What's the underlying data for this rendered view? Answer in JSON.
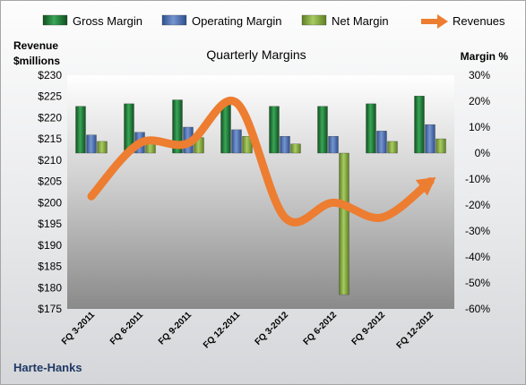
{
  "chart_data": {
    "type": "bar",
    "title": "Quarterly Margins",
    "categories": [
      "FQ 3-2011",
      "FQ 6-2011",
      "FQ 9-2011",
      "FQ 12-2011",
      "FQ 3-2012",
      "FQ 6-2012",
      "FQ 9-2012",
      "FQ 12-2012"
    ],
    "series": [
      {
        "name": "Gross Margin",
        "axis": "right",
        "kind": "bar",
        "color": "#1e7b34",
        "values": [
          18.0,
          19.0,
          20.5,
          19.0,
          18.0,
          18.0,
          19.0,
          22.0
        ]
      },
      {
        "name": "Operating Margin",
        "axis": "right",
        "kind": "bar",
        "color": "#4a72b8",
        "values": [
          7.0,
          8.0,
          10.0,
          9.0,
          6.5,
          6.5,
          8.5,
          11.0
        ]
      },
      {
        "name": "Net Margin",
        "axis": "right",
        "kind": "bar",
        "color": "#8db33f",
        "values": [
          4.5,
          5.0,
          6.0,
          6.5,
          3.5,
          -54.5,
          4.5,
          5.5
        ]
      },
      {
        "name": "Revenues",
        "axis": "left",
        "kind": "line-arrow",
        "color": "#ed7d31",
        "values": [
          201.5,
          214.0,
          214.0,
          223.5,
          196.5,
          200.0,
          196.5,
          205.0
        ]
      }
    ],
    "y_left": {
      "label": "Revenue\n$millions",
      "lim": [
        175,
        230
      ],
      "ticks": [
        175,
        180,
        185,
        190,
        195,
        200,
        205,
        210,
        215,
        220,
        225,
        230
      ],
      "format": "$"
    },
    "y_right": {
      "label": "Margin %",
      "lim": [
        -60,
        30
      ],
      "ticks": [
        -60,
        -50,
        -40,
        -30,
        -20,
        -10,
        0,
        10,
        20,
        30
      ],
      "format": "%"
    },
    "legend_position": "top",
    "grid": false
  },
  "footer": {
    "company": "Harte-Hanks"
  }
}
